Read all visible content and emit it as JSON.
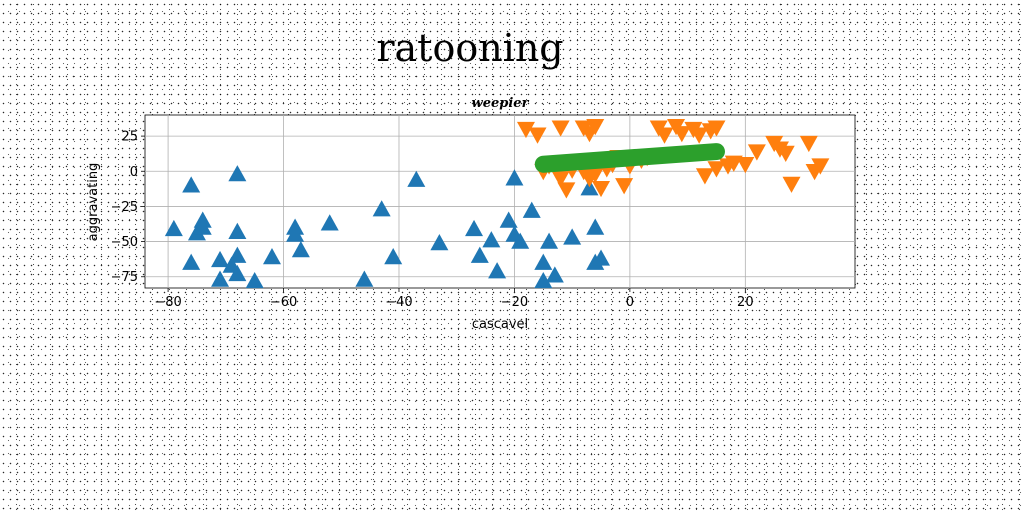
{
  "chart_data": {
    "type": "scatter",
    "suptitle": "ratooning",
    "title": "weepier",
    "xlabel": "cascavel",
    "ylabel": "aggravating",
    "xlim": [
      -84,
      39
    ],
    "ylim": [
      -83,
      40
    ],
    "xticks": [
      -80,
      -60,
      -40,
      -20,
      0,
      20
    ],
    "yticks": [
      25,
      0,
      -25,
      -50,
      -75
    ],
    "grid": true,
    "series": [
      {
        "marker": "triangle-up",
        "color": "#1f77b4",
        "points": [
          [
            -76,
            -10
          ],
          [
            -68,
            -2
          ],
          [
            -79,
            -41
          ],
          [
            -75,
            -44
          ],
          [
            -74,
            -35
          ],
          [
            -74,
            -40
          ],
          [
            -76,
            -65
          ],
          [
            -71,
            -63
          ],
          [
            -69,
            -67
          ],
          [
            -68,
            -60
          ],
          [
            -68,
            -43
          ],
          [
            -71,
            -77
          ],
          [
            -68,
            -73
          ],
          [
            -65,
            -78
          ],
          [
            -62,
            -61
          ],
          [
            -58,
            -40
          ],
          [
            -58,
            -45
          ],
          [
            -57,
            -56
          ],
          [
            -52,
            -37
          ],
          [
            -46,
            -77
          ],
          [
            -43,
            -27
          ],
          [
            -41,
            -61
          ],
          [
            -37,
            -6
          ],
          [
            -33,
            -51
          ],
          [
            -27,
            -41
          ],
          [
            -26,
            -60
          ],
          [
            -24,
            -49
          ],
          [
            -23,
            -71
          ],
          [
            -21,
            -35
          ],
          [
            -20,
            -5
          ],
          [
            -20,
            -45
          ],
          [
            -19,
            -50
          ],
          [
            -17,
            -28
          ],
          [
            -15,
            -65
          ],
          [
            -15,
            -78
          ],
          [
            -14,
            -50
          ],
          [
            -13,
            -74
          ],
          [
            -10,
            -47
          ],
          [
            -7,
            -12
          ],
          [
            -6,
            -40
          ],
          [
            -6,
            -65
          ],
          [
            -5,
            -62
          ]
        ]
      },
      {
        "marker": "triangle-down",
        "color": "#ff7f0e",
        "points": [
          [
            -18,
            30
          ],
          [
            -16,
            26
          ],
          [
            -12,
            31
          ],
          [
            -8,
            31
          ],
          [
            -7,
            27
          ],
          [
            -6,
            32
          ],
          [
            -15,
            0
          ],
          [
            -14,
            4
          ],
          [
            -12,
            -5
          ],
          [
            -11,
            -13
          ],
          [
            -10,
            1
          ],
          [
            -8,
            0
          ],
          [
            -7,
            -5
          ],
          [
            -6,
            -2
          ],
          [
            -5,
            -12
          ],
          [
            -4,
            2
          ],
          [
            -3,
            5
          ],
          [
            -2,
            10
          ],
          [
            -1,
            -10
          ],
          [
            0,
            4
          ],
          [
            2,
            8
          ],
          [
            3,
            10
          ],
          [
            5,
            31
          ],
          [
            6,
            26
          ],
          [
            8,
            32
          ],
          [
            9,
            27
          ],
          [
            11,
            30
          ],
          [
            12,
            26
          ],
          [
            14,
            29
          ],
          [
            15,
            31
          ],
          [
            13,
            -3
          ],
          [
            15,
            2
          ],
          [
            17,
            4
          ],
          [
            18,
            6
          ],
          [
            20,
            5
          ],
          [
            22,
            14
          ],
          [
            25,
            20
          ],
          [
            27,
            13
          ],
          [
            26,
            16
          ],
          [
            28,
            -9
          ],
          [
            31,
            20
          ],
          [
            32,
            0
          ],
          [
            33,
            4
          ]
        ]
      },
      {
        "marker": "line",
        "color": "#2ca02c",
        "points": [
          [
            -15,
            5
          ],
          [
            15,
            14
          ]
        ]
      }
    ]
  }
}
